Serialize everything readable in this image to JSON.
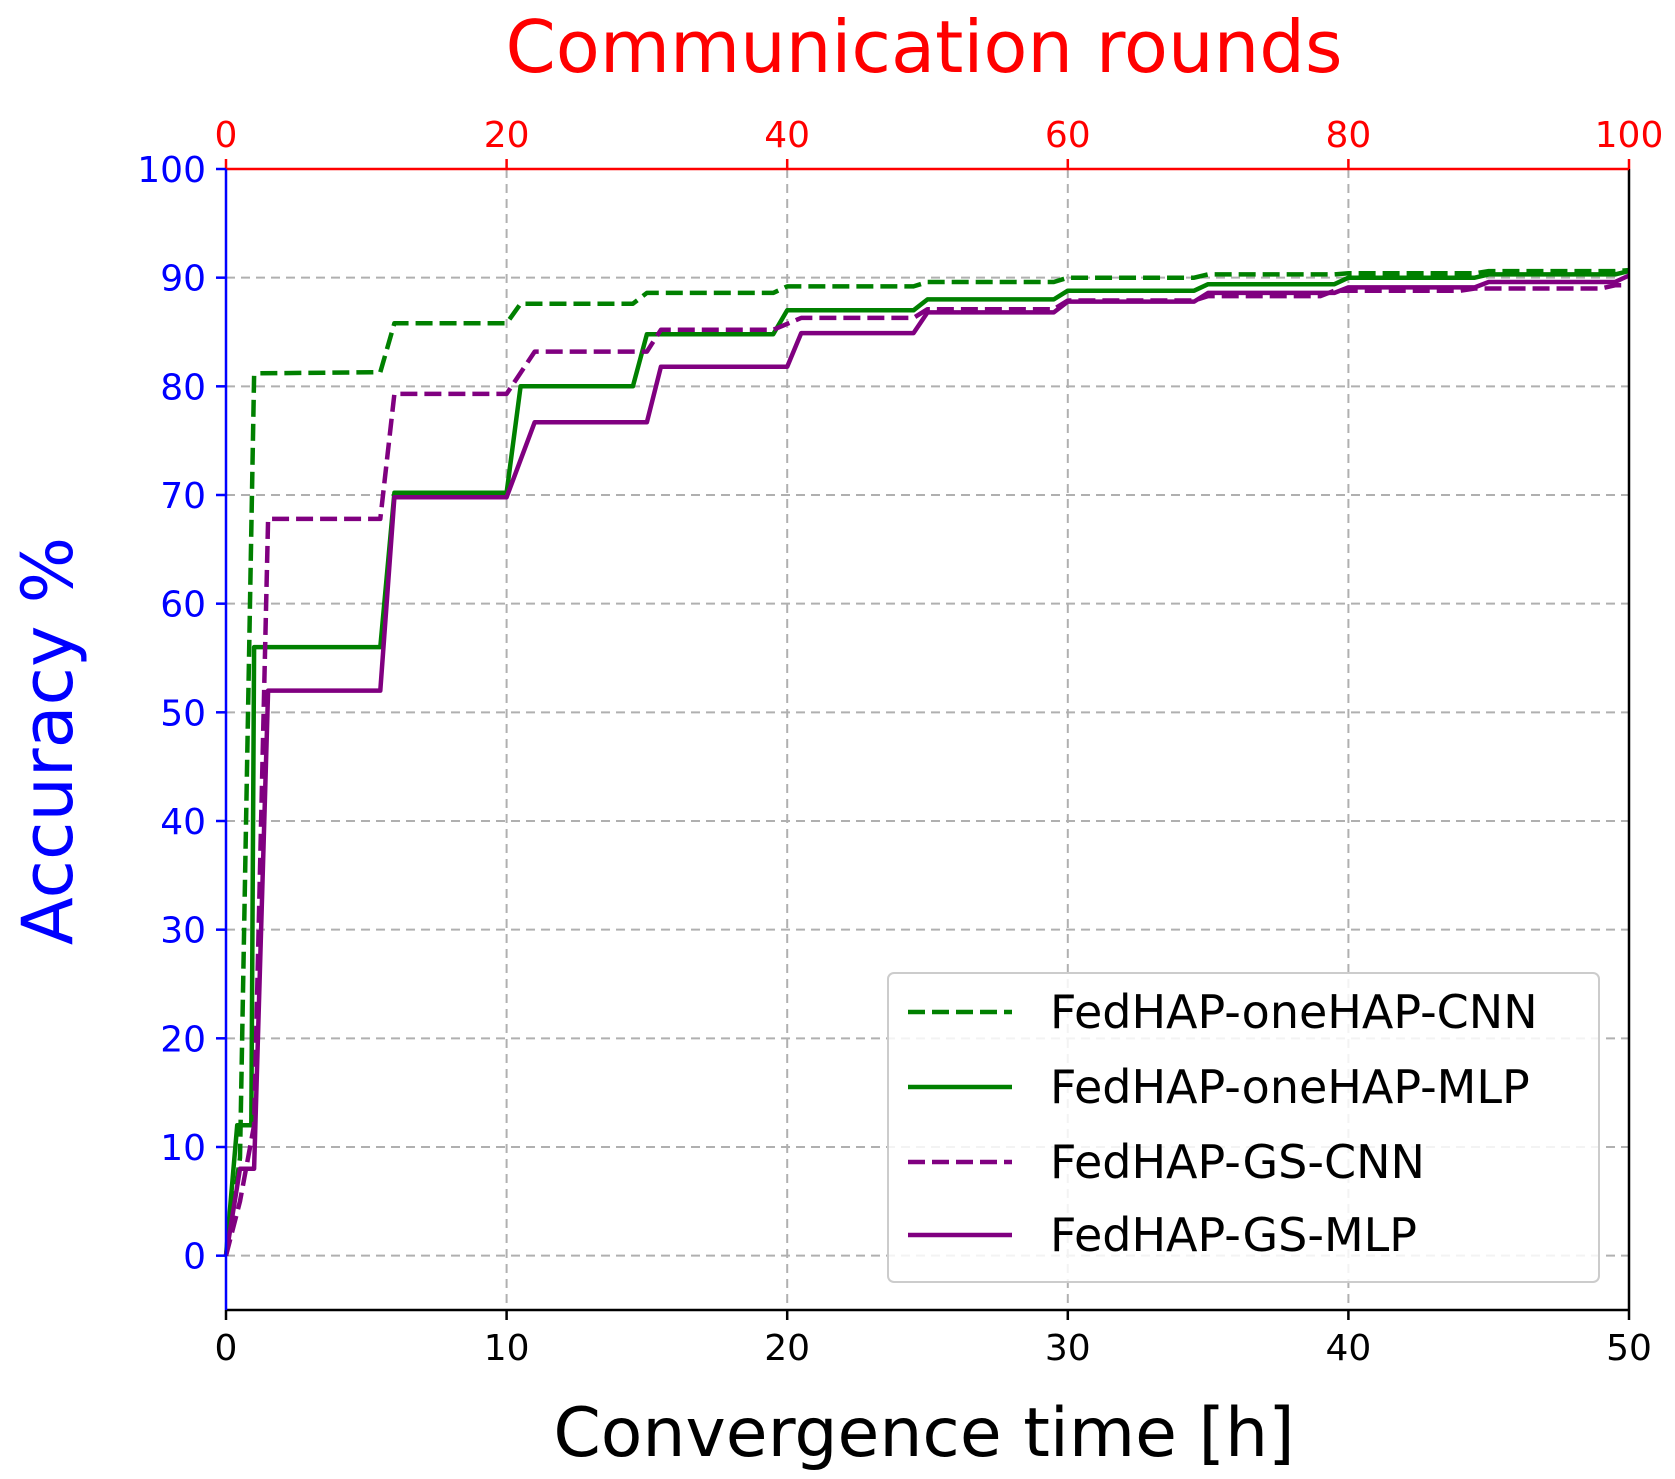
{
  "chart_data": {
    "type": "line",
    "title": "",
    "xlabel": "Convergence time [h]",
    "ylabel": "Accuracy %",
    "x2label": "Communication rounds",
    "xlim": [
      0,
      50
    ],
    "ylim": [
      -5,
      100
    ],
    "x2lim": [
      0,
      100
    ],
    "xticks": [
      0,
      10,
      20,
      30,
      40,
      50
    ],
    "yticks": [
      0,
      10,
      20,
      30,
      40,
      50,
      60,
      70,
      80,
      90,
      100
    ],
    "x2ticks": [
      0,
      20,
      40,
      60,
      80,
      100
    ],
    "grid": true,
    "legend_position": "bottom-right",
    "colors": {
      "left_axis": "#0000ff",
      "top_axis": "#ff0000",
      "green": "#008000",
      "purple": "#800080",
      "grid": "#b0b0b0"
    },
    "series": [
      {
        "name": "FedHAP-oneHAP-CNN",
        "color": "#008000",
        "style": "dashed",
        "points": [
          [
            0,
            0
          ],
          [
            0.5,
            9
          ],
          [
            1,
            81
          ],
          [
            1.2,
            81.2
          ],
          [
            5.5,
            81.3
          ],
          [
            6,
            85.8
          ],
          [
            10,
            85.8
          ],
          [
            10.5,
            87.6
          ],
          [
            14.5,
            87.6
          ],
          [
            15,
            88.6
          ],
          [
            19.5,
            88.6
          ],
          [
            20,
            89.2
          ],
          [
            24.5,
            89.2
          ],
          [
            25,
            89.6
          ],
          [
            29.5,
            89.6
          ],
          [
            30,
            90.0
          ],
          [
            34.5,
            90.0
          ],
          [
            35,
            90.3
          ],
          [
            39.5,
            90.3
          ],
          [
            40,
            90.4
          ],
          [
            44.5,
            90.4
          ],
          [
            45,
            90.6
          ],
          [
            49.5,
            90.6
          ],
          [
            50,
            90.7
          ]
        ]
      },
      {
        "name": "FedHAP-oneHAP-MLP",
        "color": "#008000",
        "style": "solid",
        "points": [
          [
            0,
            0
          ],
          [
            0.4,
            12
          ],
          [
            0.9,
            12
          ],
          [
            1.0,
            56
          ],
          [
            5.5,
            56
          ],
          [
            6,
            70.2
          ],
          [
            10,
            70.2
          ],
          [
            10.5,
            80.0
          ],
          [
            14.5,
            80.0
          ],
          [
            15,
            84.8
          ],
          [
            19.5,
            84.8
          ],
          [
            20,
            87.0
          ],
          [
            24.5,
            87.0
          ],
          [
            25,
            88.0
          ],
          [
            29.5,
            88.0
          ],
          [
            30,
            88.8
          ],
          [
            34.5,
            88.8
          ],
          [
            35,
            89.4
          ],
          [
            39.5,
            89.4
          ],
          [
            40,
            90.0
          ],
          [
            44.5,
            90.0
          ],
          [
            45,
            90.3
          ],
          [
            49.5,
            90.3
          ],
          [
            50,
            90.6
          ]
        ]
      },
      {
        "name": "FedHAP-GS-CNN",
        "color": "#800080",
        "style": "dashed",
        "points": [
          [
            0,
            0
          ],
          [
            0.5,
            5
          ],
          [
            1,
            12
          ],
          [
            1.5,
            67.8
          ],
          [
            5.5,
            67.8
          ],
          [
            6,
            79.3
          ],
          [
            10,
            79.3
          ],
          [
            11,
            83.2
          ],
          [
            15,
            83.2
          ],
          [
            15.5,
            85.2
          ],
          [
            19.5,
            85.2
          ],
          [
            20.5,
            86.3
          ],
          [
            24.5,
            86.3
          ],
          [
            25,
            87.1
          ],
          [
            29.5,
            87.1
          ],
          [
            30,
            87.9
          ],
          [
            34.5,
            87.9
          ],
          [
            35,
            88.3
          ],
          [
            39,
            88.3
          ],
          [
            39.5,
            88.8
          ],
          [
            44,
            88.8
          ],
          [
            44.5,
            89.0
          ],
          [
            49,
            89.0
          ],
          [
            49.5,
            89.3
          ],
          [
            50,
            89.3
          ]
        ]
      },
      {
        "name": "FedHAP-GS-MLP",
        "color": "#800080",
        "style": "solid",
        "points": [
          [
            0,
            0
          ],
          [
            0.5,
            8
          ],
          [
            1,
            8
          ],
          [
            1.5,
            52
          ],
          [
            5.5,
            52
          ],
          [
            6,
            69.8
          ],
          [
            10,
            69.8
          ],
          [
            11,
            76.7
          ],
          [
            15,
            76.7
          ],
          [
            15.5,
            81.8
          ],
          [
            20,
            81.8
          ],
          [
            20.5,
            84.9
          ],
          [
            24.5,
            84.9
          ],
          [
            25,
            86.8
          ],
          [
            29.5,
            86.8
          ],
          [
            30,
            87.8
          ],
          [
            34.5,
            87.8
          ],
          [
            35,
            88.6
          ],
          [
            39.5,
            88.6
          ],
          [
            40,
            89.1
          ],
          [
            44.5,
            89.1
          ],
          [
            45,
            89.6
          ],
          [
            49.5,
            89.6
          ],
          [
            50,
            90.2
          ]
        ]
      }
    ]
  }
}
